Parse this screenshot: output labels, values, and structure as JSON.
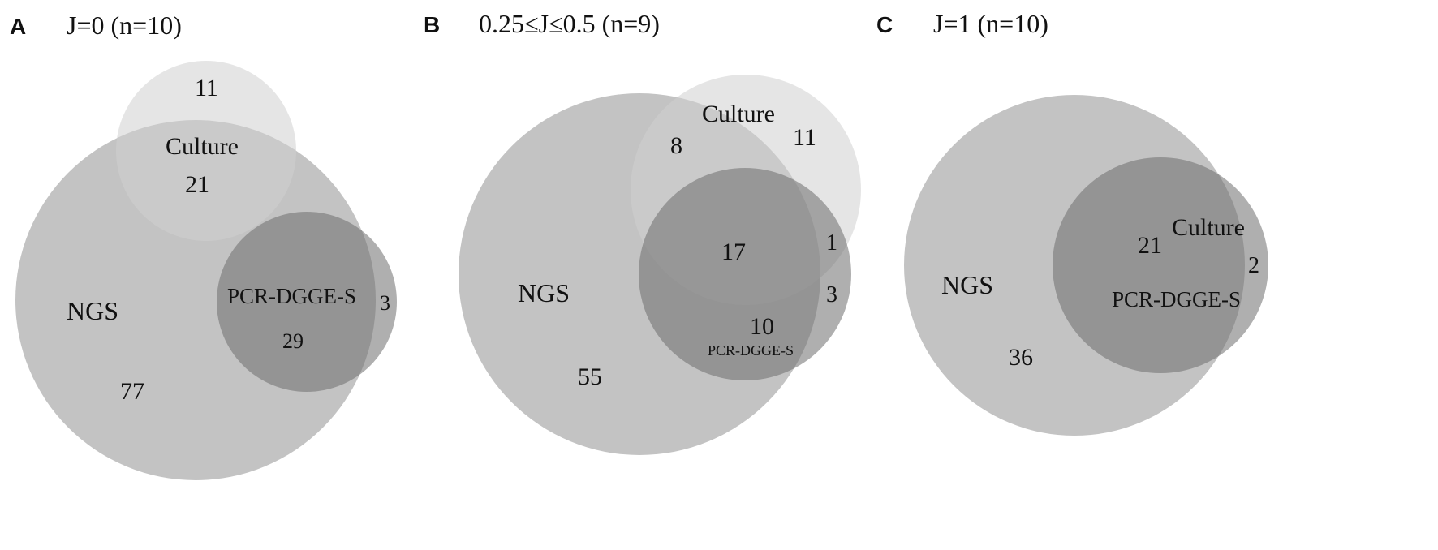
{
  "colors": {
    "ngs": "#b9b9b9",
    "culture": "#cfcfcf",
    "pcr": "#6e6e6e",
    "text": "#111111"
  },
  "panels": [
    {
      "letter": "A",
      "title": "J=0 (n=10)",
      "sets": [
        {
          "id": "ngs",
          "label": "NGS"
        },
        {
          "id": "culture",
          "label": "Culture"
        },
        {
          "id": "pcr",
          "label": "PCR-DGGE-S"
        }
      ],
      "regions": [
        {
          "sets": [
            "culture"
          ],
          "count": "11"
        },
        {
          "sets": [
            "ngs",
            "culture"
          ],
          "count": "21"
        },
        {
          "sets": [
            "ngs",
            "pcr"
          ],
          "count": "29"
        },
        {
          "sets": [
            "pcr"
          ],
          "count": "3"
        },
        {
          "sets": [
            "ngs"
          ],
          "count": "77"
        }
      ]
    },
    {
      "letter": "B",
      "title": "0.25≤J≤0.5 (n=9)",
      "sets": [
        {
          "id": "ngs",
          "label": "NGS"
        },
        {
          "id": "culture",
          "label": "Culture"
        },
        {
          "id": "pcr",
          "label": "PCR-DGGE-S"
        }
      ],
      "regions": [
        {
          "sets": [
            "ngs",
            "culture"
          ],
          "count": "8"
        },
        {
          "sets": [
            "culture"
          ],
          "count": "11"
        },
        {
          "sets": [
            "ngs",
            "culture",
            "pcr"
          ],
          "count": "17"
        },
        {
          "sets": [
            "culture",
            "pcr"
          ],
          "count": "1"
        },
        {
          "sets": [
            "pcr"
          ],
          "count": "3"
        },
        {
          "sets": [
            "ngs",
            "pcr"
          ],
          "count": "10"
        },
        {
          "sets": [
            "ngs"
          ],
          "count": "55"
        }
      ]
    },
    {
      "letter": "C",
      "title": "J=1 (n=10)",
      "sets": [
        {
          "id": "ngs",
          "label": "NGS"
        },
        {
          "id": "culture",
          "label": "Culture"
        },
        {
          "id": "pcr",
          "label": "PCR-DGGE-S"
        }
      ],
      "regions": [
        {
          "sets": [
            "ngs",
            "culture",
            "pcr"
          ],
          "count": "21"
        },
        {
          "sets": [
            "culture",
            "pcr"
          ],
          "count": "2"
        },
        {
          "sets": [
            "ngs"
          ],
          "count": "36"
        }
      ]
    }
  ]
}
